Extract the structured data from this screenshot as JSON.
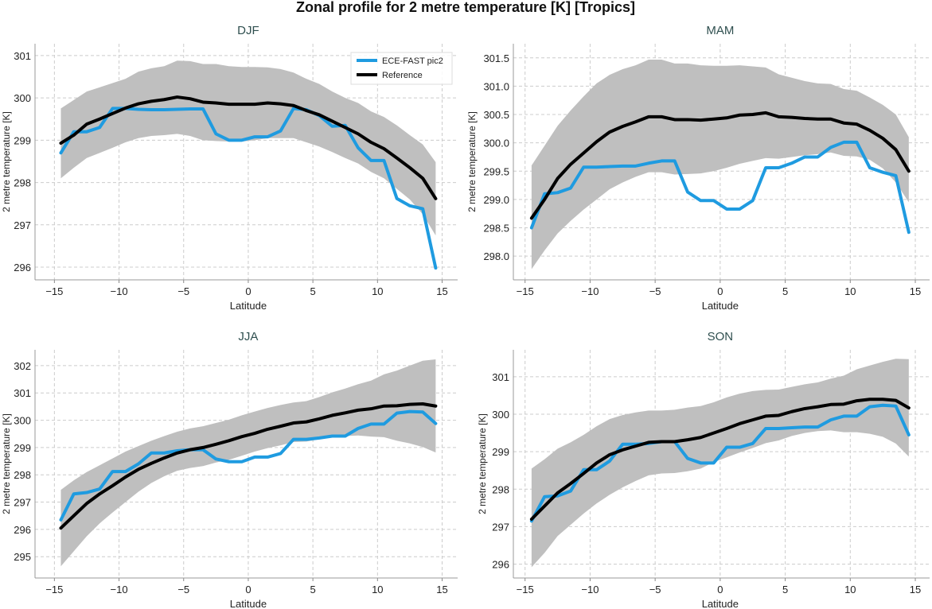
{
  "title": "Zonal profile for 2 metre temperature [K] [Tropics]",
  "colors": {
    "model": "#1f9be0",
    "reference": "#000000",
    "band": "#bfbfbf",
    "grid": "#cccccc",
    "title": "#2f4f4f"
  },
  "legend": {
    "placement": "top-right",
    "entries": [
      "ECE-FAST pic2",
      "Reference"
    ]
  },
  "chart_data": [
    {
      "type": "line",
      "title": "DJF",
      "xlabel": "Latitude",
      "ylabel": "2 metre temperature [K]",
      "xlim": [
        -16.5,
        16.2
      ],
      "ylim": [
        295.7,
        301.28
      ],
      "grid": true,
      "xticks": [
        -15,
        -10,
        -5,
        0,
        5,
        10,
        15
      ],
      "yticks": [
        296,
        297,
        298,
        299,
        300,
        301
      ],
      "ytick_labels": [
        "296",
        "297",
        "298",
        "299",
        "300",
        "301"
      ],
      "x": [
        -14.5,
        -13.5,
        -12.5,
        -11.5,
        -10.5,
        -9.5,
        -8.5,
        -7.5,
        -6.5,
        -5.5,
        -4.5,
        -3.5,
        -2.5,
        -1.5,
        -0.5,
        0.5,
        1.5,
        2.5,
        3.5,
        4.5,
        5.5,
        6.5,
        7.5,
        8.5,
        9.5,
        10.5,
        11.5,
        12.5,
        13.5,
        14.5
      ],
      "series": [
        {
          "name": "ECE-FAST pic2",
          "values": [
            298.7,
            299.2,
            299.2,
            299.3,
            299.75,
            299.75,
            299.73,
            299.72,
            299.72,
            299.73,
            299.74,
            299.74,
            299.15,
            299.0,
            299.0,
            299.08,
            299.08,
            299.22,
            299.75,
            299.72,
            299.58,
            299.33,
            299.35,
            298.82,
            298.52,
            298.52,
            297.62,
            297.45,
            297.38,
            295.98
          ]
        },
        {
          "name": "Reference",
          "values": [
            298.93,
            299.12,
            299.38,
            299.5,
            299.63,
            299.76,
            299.86,
            299.92,
            299.96,
            300.02,
            299.98,
            299.9,
            299.88,
            299.85,
            299.85,
            299.85,
            299.88,
            299.86,
            299.82,
            299.7,
            299.6,
            299.45,
            299.3,
            299.15,
            298.95,
            298.8,
            298.58,
            298.35,
            298.1,
            297.62
          ]
        }
      ],
      "band_upper": [
        299.75,
        299.95,
        300.15,
        300.25,
        300.35,
        300.45,
        300.62,
        300.7,
        300.75,
        300.88,
        300.87,
        300.8,
        300.8,
        300.75,
        300.73,
        300.73,
        300.72,
        300.68,
        300.6,
        300.45,
        300.33,
        300.15,
        300.0,
        299.88,
        299.68,
        299.55,
        299.35,
        299.12,
        298.9,
        298.48
      ],
      "band_lower": [
        298.1,
        298.35,
        298.58,
        298.7,
        298.82,
        298.95,
        299.05,
        299.1,
        299.12,
        299.15,
        299.1,
        299.0,
        298.98,
        298.97,
        298.97,
        299.0,
        299.05,
        299.05,
        299.05,
        298.95,
        298.85,
        298.72,
        298.58,
        298.45,
        298.25,
        298.1,
        297.85,
        297.6,
        297.25,
        296.75
      ]
    },
    {
      "type": "line",
      "title": "MAM",
      "xlabel": "Latitude",
      "ylabel": "2 metre temperature [K]",
      "xlim": [
        -15.9,
        16.1
      ],
      "ylim": [
        297.58,
        301.75
      ],
      "grid": true,
      "xticks": [
        -15,
        -10,
        -5,
        0,
        5,
        10,
        15
      ],
      "yticks": [
        298,
        298.5,
        299,
        299.5,
        300,
        300.5,
        301,
        301.5
      ],
      "ytick_labels": [
        "298.0",
        "298.5",
        "299.0",
        "299.5",
        "300.0",
        "300.5",
        "301.0",
        "301.5"
      ],
      "x": [
        -14.5,
        -13.5,
        -12.5,
        -11.5,
        -10.5,
        -9.5,
        -8.5,
        -7.5,
        -6.5,
        -5.5,
        -4.5,
        -3.5,
        -2.5,
        -1.5,
        -0.5,
        0.5,
        1.5,
        2.5,
        3.5,
        4.5,
        5.5,
        6.5,
        7.5,
        8.5,
        9.5,
        10.5,
        11.5,
        12.5,
        13.5,
        14.5
      ],
      "series": [
        {
          "name": "ECE-FAST pic2",
          "values": [
            298.5,
            299.1,
            299.12,
            299.2,
            299.57,
            299.57,
            299.58,
            299.59,
            299.59,
            299.64,
            299.68,
            299.68,
            299.13,
            298.98,
            298.98,
            298.83,
            298.83,
            298.98,
            299.56,
            299.56,
            299.64,
            299.75,
            299.75,
            299.92,
            300.01,
            300.01,
            299.56,
            299.48,
            299.42,
            298.42
          ]
        },
        {
          "name": "Reference",
          "values": [
            298.67,
            299.0,
            299.37,
            299.62,
            299.82,
            300.02,
            300.19,
            300.29,
            300.37,
            300.46,
            300.46,
            300.41,
            300.41,
            300.4,
            300.42,
            300.44,
            300.49,
            300.5,
            300.53,
            300.46,
            300.45,
            300.43,
            300.42,
            300.42,
            300.35,
            300.33,
            300.22,
            300.08,
            299.88,
            299.5
          ]
        }
      ],
      "band_upper": [
        299.6,
        299.95,
        300.3,
        300.57,
        300.82,
        301.05,
        301.2,
        301.3,
        301.37,
        301.47,
        301.47,
        301.4,
        301.4,
        301.37,
        301.36,
        301.36,
        301.37,
        301.35,
        301.33,
        301.21,
        301.15,
        301.09,
        301.05,
        301.04,
        300.95,
        300.92,
        300.8,
        300.67,
        300.5,
        300.1
      ],
      "band_lower": [
        297.77,
        298.1,
        298.4,
        298.62,
        298.82,
        299.0,
        299.18,
        299.3,
        299.4,
        299.48,
        299.48,
        299.44,
        299.45,
        299.46,
        299.5,
        299.56,
        299.63,
        299.68,
        299.73,
        299.72,
        299.75,
        299.78,
        299.8,
        299.83,
        299.77,
        299.76,
        299.7,
        299.55,
        299.3,
        298.95
      ]
    },
    {
      "type": "line",
      "title": "JJA",
      "xlabel": "Latitude",
      "ylabel": "2 metre temperature [K]",
      "xlim": [
        -16.5,
        16.2
      ],
      "ylim": [
        294.22,
        302.58
      ],
      "grid": true,
      "xticks": [
        -15,
        -10,
        -5,
        0,
        5,
        10,
        15
      ],
      "yticks": [
        295,
        296,
        297,
        298,
        299,
        300,
        301,
        302
      ],
      "ytick_labels": [
        "295",
        "296",
        "297",
        "298",
        "299",
        "300",
        "301",
        "302"
      ],
      "x": [
        -14.5,
        -13.5,
        -12.5,
        -11.5,
        -10.5,
        -9.5,
        -8.5,
        -7.5,
        -6.5,
        -5.5,
        -4.5,
        -3.5,
        -2.5,
        -1.5,
        -0.5,
        0.5,
        1.5,
        2.5,
        3.5,
        4.5,
        5.5,
        6.5,
        7.5,
        8.5,
        9.5,
        10.5,
        11.5,
        12.5,
        13.5,
        14.5
      ],
      "series": [
        {
          "name": "ECE-FAST pic2",
          "values": [
            296.35,
            297.3,
            297.35,
            297.48,
            298.12,
            298.12,
            298.4,
            298.8,
            298.8,
            298.88,
            298.92,
            298.92,
            298.58,
            298.48,
            298.48,
            298.65,
            298.65,
            298.78,
            299.3,
            299.3,
            299.35,
            299.42,
            299.42,
            299.7,
            299.86,
            299.86,
            300.26,
            300.32,
            300.3,
            299.88
          ]
        },
        {
          "name": "Reference",
          "values": [
            296.05,
            296.5,
            296.95,
            297.3,
            297.6,
            297.92,
            298.2,
            298.42,
            298.62,
            298.8,
            298.92,
            299.0,
            299.12,
            299.25,
            299.4,
            299.52,
            299.67,
            299.78,
            299.9,
            299.94,
            300.05,
            300.18,
            300.27,
            300.37,
            300.42,
            300.52,
            300.53,
            300.58,
            300.6,
            300.52
          ]
        }
      ],
      "band_upper": [
        297.45,
        297.8,
        298.1,
        298.35,
        298.6,
        298.85,
        299.05,
        299.25,
        299.42,
        299.58,
        299.7,
        299.78,
        299.9,
        300.02,
        300.18,
        300.32,
        300.45,
        300.56,
        300.65,
        300.7,
        300.85,
        301.02,
        301.16,
        301.32,
        301.45,
        301.68,
        301.82,
        302.0,
        302.18,
        302.23
      ],
      "band_lower": [
        294.65,
        295.2,
        295.75,
        296.22,
        296.62,
        297.0,
        297.38,
        297.7,
        297.95,
        298.15,
        298.25,
        298.32,
        298.45,
        298.55,
        298.7,
        298.85,
        298.98,
        299.08,
        299.2,
        299.22,
        299.3,
        299.38,
        299.42,
        299.44,
        299.4,
        299.38,
        299.25,
        299.15,
        299.02,
        298.82
      ]
    },
    {
      "type": "line",
      "title": "SON",
      "xlabel": "Latitude",
      "ylabel": "2 metre temperature [K]",
      "xlim": [
        -15.9,
        16.1
      ],
      "ylim": [
        295.63,
        301.72
      ],
      "grid": true,
      "xticks": [
        -15,
        -10,
        -5,
        0,
        5,
        10,
        15
      ],
      "yticks": [
        296,
        297,
        298,
        299,
        300,
        301
      ],
      "ytick_labels": [
        "296",
        "297",
        "298",
        "299",
        "300",
        "301"
      ],
      "x": [
        -14.5,
        -13.5,
        -12.5,
        -11.5,
        -10.5,
        -9.5,
        -8.5,
        -7.5,
        -6.5,
        -5.5,
        -4.5,
        -3.5,
        -2.5,
        -1.5,
        -0.5,
        0.5,
        1.5,
        2.5,
        3.5,
        4.5,
        5.5,
        6.5,
        7.5,
        8.5,
        9.5,
        10.5,
        11.5,
        12.5,
        13.5,
        14.5
      ],
      "series": [
        {
          "name": "ECE-FAST pic2",
          "values": [
            297.15,
            297.8,
            297.82,
            297.95,
            298.52,
            298.52,
            298.75,
            299.2,
            299.2,
            299.22,
            299.27,
            299.27,
            298.82,
            298.7,
            298.7,
            299.12,
            299.12,
            299.22,
            299.62,
            299.62,
            299.64,
            299.66,
            299.66,
            299.85,
            299.95,
            299.95,
            300.2,
            300.24,
            300.22,
            299.45
          ]
        },
        {
          "name": "Reference",
          "values": [
            297.2,
            297.55,
            297.9,
            298.15,
            298.42,
            298.7,
            298.92,
            299.05,
            299.15,
            299.25,
            299.27,
            299.27,
            299.32,
            299.38,
            299.5,
            299.62,
            299.75,
            299.85,
            299.95,
            299.97,
            300.07,
            300.15,
            300.2,
            300.26,
            300.27,
            300.36,
            300.4,
            300.4,
            300.37,
            300.17
          ]
        }
      ],
      "band_upper": [
        298.55,
        298.8,
        299.08,
        299.25,
        299.45,
        299.68,
        299.87,
        299.98,
        300.05,
        300.1,
        300.1,
        300.12,
        300.18,
        300.22,
        300.32,
        300.45,
        300.55,
        300.62,
        300.65,
        300.66,
        300.73,
        300.8,
        300.85,
        300.95,
        301.03,
        301.2,
        301.3,
        301.4,
        301.48,
        301.47
      ],
      "band_lower": [
        295.92,
        296.3,
        296.75,
        297.05,
        297.35,
        297.62,
        297.85,
        298.05,
        298.22,
        298.37,
        298.42,
        298.43,
        298.48,
        298.55,
        298.72,
        298.85,
        298.98,
        299.1,
        299.23,
        299.3,
        299.42,
        299.5,
        299.55,
        299.57,
        299.52,
        299.52,
        299.48,
        299.4,
        299.22,
        298.87
      ]
    }
  ]
}
